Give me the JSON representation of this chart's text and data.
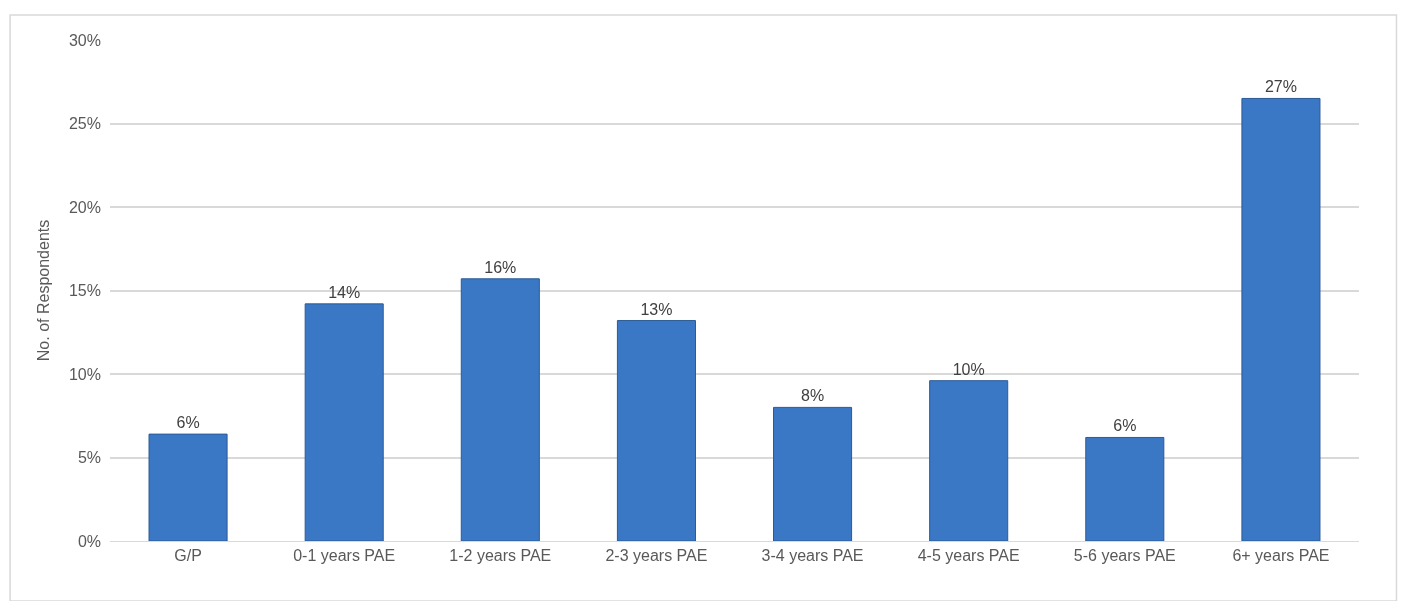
{
  "chart_data": {
    "type": "bar",
    "ylabel": "No. of Respondents",
    "categories": [
      "G/P",
      "0-1 years PAE",
      "1-2 years PAE",
      "2-3 years PAE",
      "3-4 years PAE",
      "4-5 years PAE",
      "5-6 years PAE",
      "6+ years PAE"
    ],
    "values": [
      6.4,
      14.2,
      15.7,
      13.2,
      8.0,
      9.6,
      6.2,
      26.5
    ],
    "value_labels": [
      "6%",
      "14%",
      "16%",
      "13%",
      "8%",
      "10%",
      "6%",
      "27%"
    ],
    "color": "#3a78c6",
    "ylim": [
      0,
      30
    ],
    "yticks": [
      {
        "value": 0,
        "label": "0%"
      },
      {
        "value": 5,
        "label": "5%"
      },
      {
        "value": 10,
        "label": "10%"
      },
      {
        "value": 15,
        "label": "15%"
      },
      {
        "value": 20,
        "label": "20%"
      },
      {
        "value": 25,
        "label": "25%"
      },
      {
        "value": 30,
        "label": "30%"
      }
    ],
    "grid": "y"
  }
}
